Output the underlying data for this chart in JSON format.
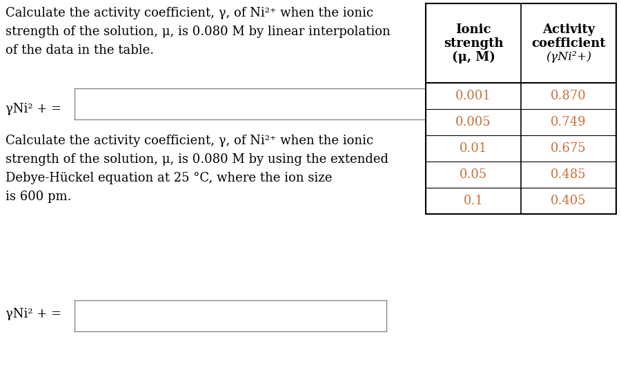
{
  "bg_color": "#ffffff",
  "left_text_block1": [
    "Calculate the activity coefficient, γ, of Ni²⁺ when the ionic",
    "strength of the solution, μ, is 0.080 M by linear interpolation",
    "of the data in the table."
  ],
  "left_text_block2": [
    "Calculate the activity coefficient, γ, of Ni²⁺ when the ionic",
    "strength of the solution, μ, is 0.080 M by using the extended",
    "Debye-Hückel equation at 25 °C, where the ion size",
    "is 600 pm."
  ],
  "label": "γNi² + =",
  "table_col1_header": [
    "Ionic",
    "strength",
    "(μ, M)"
  ],
  "table_col2_header": [
    "Activity",
    "coefficient"
  ],
  "table_col2_header3": "(γNi²+)",
  "table_data_col1": [
    "0.001",
    "0.005",
    "0.01",
    "0.05",
    "0.1"
  ],
  "table_data_col2": [
    "0.870",
    "0.749",
    "0.675",
    "0.485",
    "0.405"
  ],
  "data_color": "#c87137",
  "header_color": "#000000",
  "text_color": "#000000",
  "font_size": 13.0,
  "table_font_size": 13.0,
  "fig_width": 9.0,
  "fig_height": 5.65,
  "dpi": 100
}
